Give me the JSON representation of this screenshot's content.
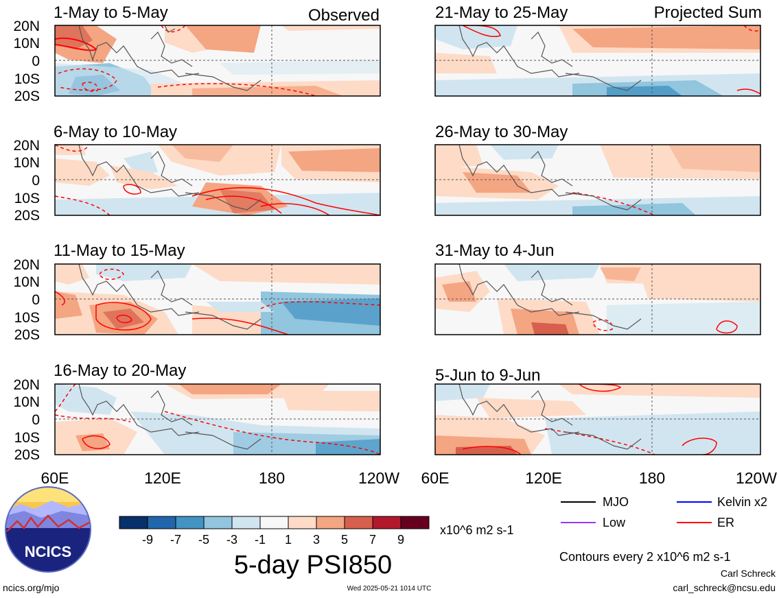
{
  "panels": [
    {
      "id": "p1",
      "title": "1-May to 5-May",
      "tag": "Observed"
    },
    {
      "id": "p2",
      "title": "6-May to 10-May",
      "tag": ""
    },
    {
      "id": "p3",
      "title": "11-May to 15-May",
      "tag": ""
    },
    {
      "id": "p4",
      "title": "16-May to 20-May",
      "tag": ""
    },
    {
      "id": "p5",
      "title": "21-May to 25-May",
      "tag": "Projected Sum"
    },
    {
      "id": "p6",
      "title": "26-May to 30-May",
      "tag": ""
    },
    {
      "id": "p7",
      "title": "31-May to 4-Jun",
      "tag": ""
    },
    {
      "id": "p8",
      "title": "5-Jun to 9-Jun",
      "tag": ""
    }
  ],
  "lat_labels": [
    "20N",
    "10N",
    "0",
    "10S",
    "20S"
  ],
  "lon_labels_left": [
    "60E",
    "120E",
    "180",
    "120W"
  ],
  "lon_labels_right": [
    "60E",
    "120E",
    "180",
    "120W"
  ],
  "colorbar": {
    "colors": [
      "#08306b",
      "#2166ac",
      "#4393c3",
      "#92c5de",
      "#d1e5f0",
      "#f7f7f7",
      "#fddbc7",
      "#f4a582",
      "#d6604d",
      "#b2182b",
      "#67001f"
    ],
    "tick_labels": [
      "-9",
      "-7",
      "-5",
      "-3",
      "-1",
      "1",
      "3",
      "5",
      "7",
      "9"
    ],
    "units": "x10^6 m2 s-1"
  },
  "chart_title": "5-day PSI850",
  "legend": [
    {
      "label": "MJO",
      "color": "#000000"
    },
    {
      "label": "Kelvin x2",
      "color": "#0000ff"
    },
    {
      "label": "Low",
      "color": "#9933ff"
    },
    {
      "label": "ER",
      "color": "#ff0000"
    }
  ],
  "contour_note": "Contours every 2 x10^6 m2 s-1",
  "author": "Carl Schreck",
  "email": "carl_schreck@ncsu.edu",
  "site": "ncics.org/mjo",
  "timestamp": "Wed 2025-05-21 1014 UTC",
  "logo_text": "NCICS"
}
